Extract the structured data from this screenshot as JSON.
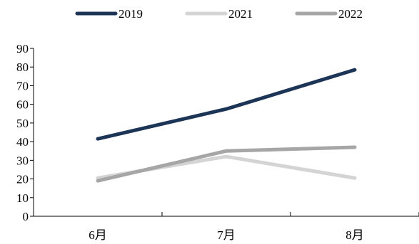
{
  "chart_data": {
    "type": "line",
    "categories": [
      "6月",
      "7月",
      "8月"
    ],
    "series": [
      {
        "name": "2019",
        "values": [
          41.5,
          57.5,
          78.5
        ],
        "color": "#1c3557"
      },
      {
        "name": "2021",
        "values": [
          20.5,
          32,
          20.5
        ],
        "color": "#d4d4d4"
      },
      {
        "name": "2022",
        "values": [
          19,
          35,
          37
        ],
        "color": "#a6a6a6"
      }
    ],
    "yticks": [
      0,
      10,
      20,
      30,
      40,
      50,
      60,
      70,
      80,
      90
    ],
    "ylim": [
      0,
      90
    ],
    "legend_position": "top-center",
    "grid": false
  }
}
